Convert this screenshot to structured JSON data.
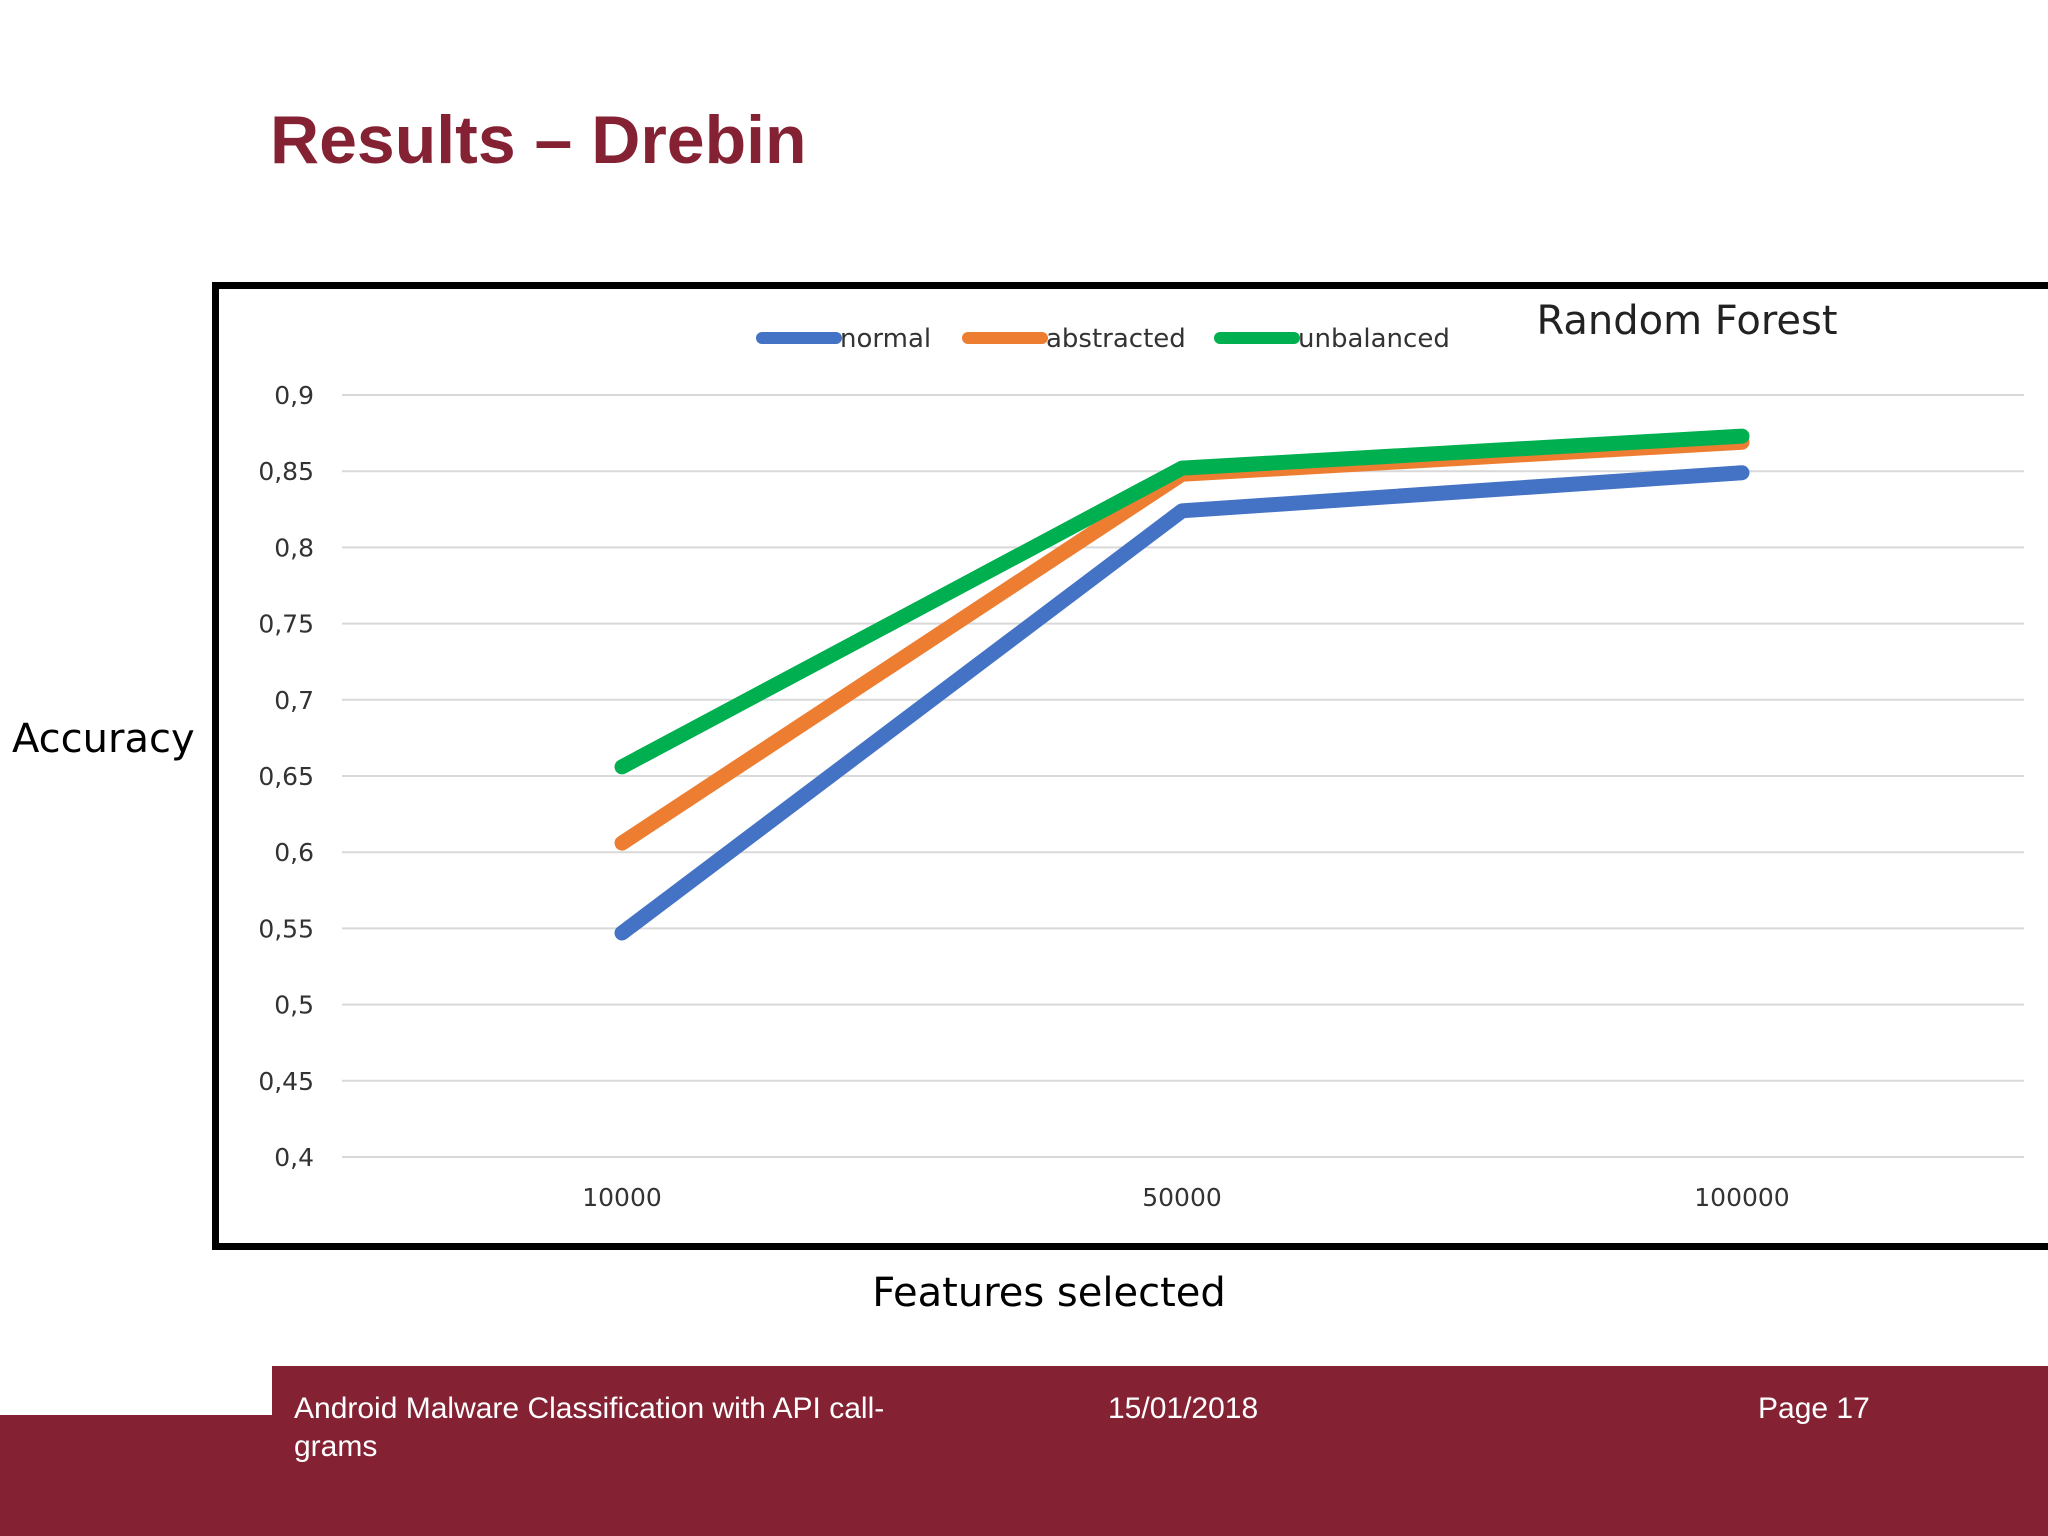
{
  "slide": {
    "title": "Results – Drebin"
  },
  "footer": {
    "presentation_title": "Android Malware Classification with API call-grams",
    "date": "15/01/2018",
    "page": "Page 17"
  },
  "colors": {
    "brand": "#842234",
    "normal": "#4472C4",
    "abstracted": "#ED7D31",
    "unbalanced": "#00B050",
    "grid": "#D9D9D9"
  },
  "chart_data": {
    "type": "line",
    "title": "Random Forest",
    "xlabel": "Features selected",
    "ylabel": "Accuracy",
    "categories": [
      "10000",
      "50000",
      "100000"
    ],
    "ylim": [
      0.4,
      0.9
    ],
    "yticks": [
      "0,9",
      "0,85",
      "0,8",
      "0,75",
      "0,7",
      "0,65",
      "0,6",
      "0,55",
      "0,5",
      "0,45",
      "0,4"
    ],
    "grid": true,
    "legend": "top",
    "series": [
      {
        "name": "normal",
        "color": "#4472C4",
        "values": [
          0.547,
          0.824,
          0.849
        ]
      },
      {
        "name": "abstracted",
        "color": "#ED7D31",
        "values": [
          0.606,
          0.848,
          0.869
        ]
      },
      {
        "name": "unbalanced",
        "color": "#00B050",
        "values": [
          0.656,
          0.852,
          0.873
        ]
      }
    ]
  }
}
